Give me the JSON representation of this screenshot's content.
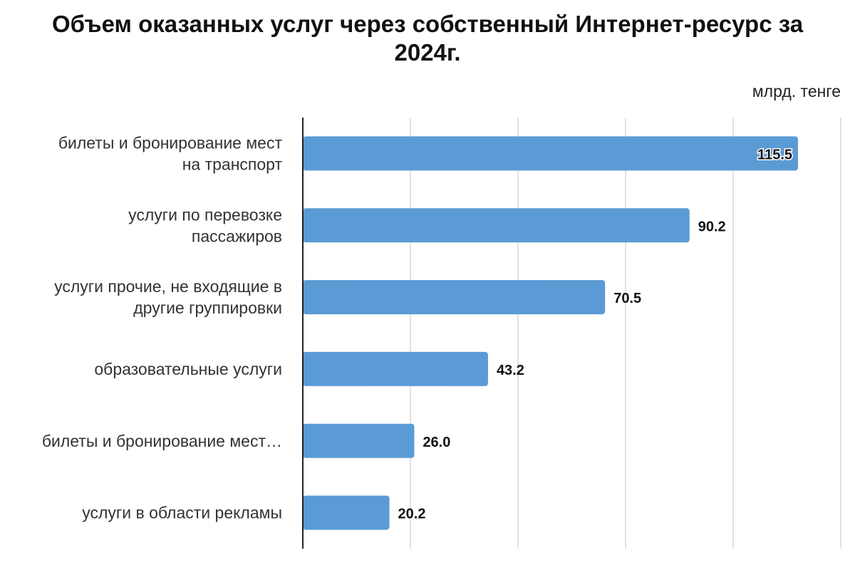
{
  "chart_data": {
    "type": "bar",
    "orientation": "horizontal",
    "title_lines": [
      "Объем оказанных услуг через собственный Интернет-ресурс за",
      "2024г."
    ],
    "unit": "млрд. тенге",
    "categories": [
      [
        "билеты и бронирование мест",
        "на транспорт"
      ],
      [
        "услуги по перевозке",
        "пассажиров"
      ],
      [
        "услуги прочие, не входящие в",
        "другие группировки"
      ],
      [
        "образовательные услуги"
      ],
      [
        "билеты и бронирование мест…"
      ],
      [
        "услуги в области рекламы"
      ]
    ],
    "values": [
      115.5,
      90.2,
      70.5,
      43.2,
      26.0,
      20.2
    ],
    "value_labels": [
      "115.5",
      "90.2",
      "70.5",
      "43.2",
      "26.0",
      "20.2"
    ],
    "xlim": [
      0,
      125
    ],
    "grid": true,
    "bar_color": "#5b9bd5",
    "grid_color": "#d9d9d9",
    "axis_color": "#222222"
  }
}
